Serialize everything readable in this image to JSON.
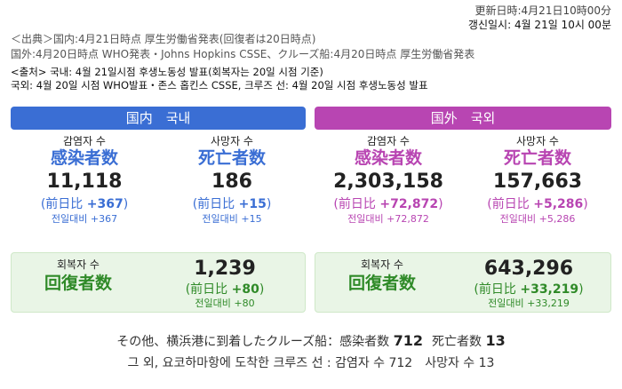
{
  "update": {
    "jp": "更新日時:4月21日10時00分",
    "kr": "갱신일시: 4월 21일 10시 00분"
  },
  "source": {
    "domestic_jp": "＜出典＞国内:4月21日時点 厚生労働省発表(回復者は20日時点)",
    "intl_jp": "国外:4月20日時点 WHO発表・Johns Hopkins CSSE、クルーズ船:4月20日時点 厚生労働省発表",
    "kr_line1": "<출처> 국내: 4월 21일시점 후생노동성 발표(회복자는 20일 시점 기준)",
    "kr_line2": "국외: 4월 20일 시점 WHO발표・존스 홉킨스 CSSE, 크루즈 선: 4월 20일 시점 후생노동성 발표"
  },
  "domestic": {
    "band": "国内　국내",
    "infected": {
      "kr_label": "감염자 수",
      "jp_label": "感染者数",
      "value": "11,118",
      "diff_prefix": "(前日比",
      "diff_value": "+367",
      "diff_suffix": ")",
      "diff_kr": "전일대비 +367"
    },
    "deaths": {
      "kr_label": "사망자 수",
      "jp_label": "死亡者数",
      "value": "186",
      "diff_prefix": "(前日比",
      "diff_value": "+15",
      "diff_suffix": ")",
      "diff_kr": "전일대비 +15"
    },
    "recovered": {
      "kr_label": "회복자 수",
      "jp_label": "回復者数",
      "value": "1,239",
      "diff_prefix": "(前日比",
      "diff_value": "+80",
      "diff_suffix": ")",
      "diff_kr": "전일대비 +80"
    }
  },
  "international": {
    "band": "国外　국외",
    "infected": {
      "kr_label": "감염자 수",
      "jp_label": "感染者数",
      "value": "2,303,158",
      "diff_prefix": "(前日比",
      "diff_value": "+72,872",
      "diff_suffix": ")",
      "diff_kr": "전일대비 +72,872"
    },
    "deaths": {
      "kr_label": "사망자 수",
      "jp_label": "死亡者数",
      "value": "157,663",
      "diff_prefix": "(前日比",
      "diff_value": "+5,286",
      "diff_suffix": ")",
      "diff_kr": "전일대비 +5,286"
    },
    "recovered": {
      "kr_label": "회복자 수",
      "jp_label": "回復者数",
      "value": "643,296",
      "diff_prefix": "(前日比",
      "diff_value": "+33,219",
      "diff_suffix": ")",
      "diff_kr": "전일대비 +33,219"
    }
  },
  "footer": {
    "jp_prefix": "その他、横浜港に到着したクルーズ船：感染者数",
    "jp_infected": "712",
    "jp_mid": "死亡者数",
    "jp_deaths": "13",
    "kr_text": "그 외, 요코하마항에 도착한 크루즈 선 : 감염자 수 712　사망자 수 13"
  },
  "colors": {
    "domestic": "#3a6ed4",
    "international": "#b845b2",
    "recovered": "#2f8a28"
  }
}
